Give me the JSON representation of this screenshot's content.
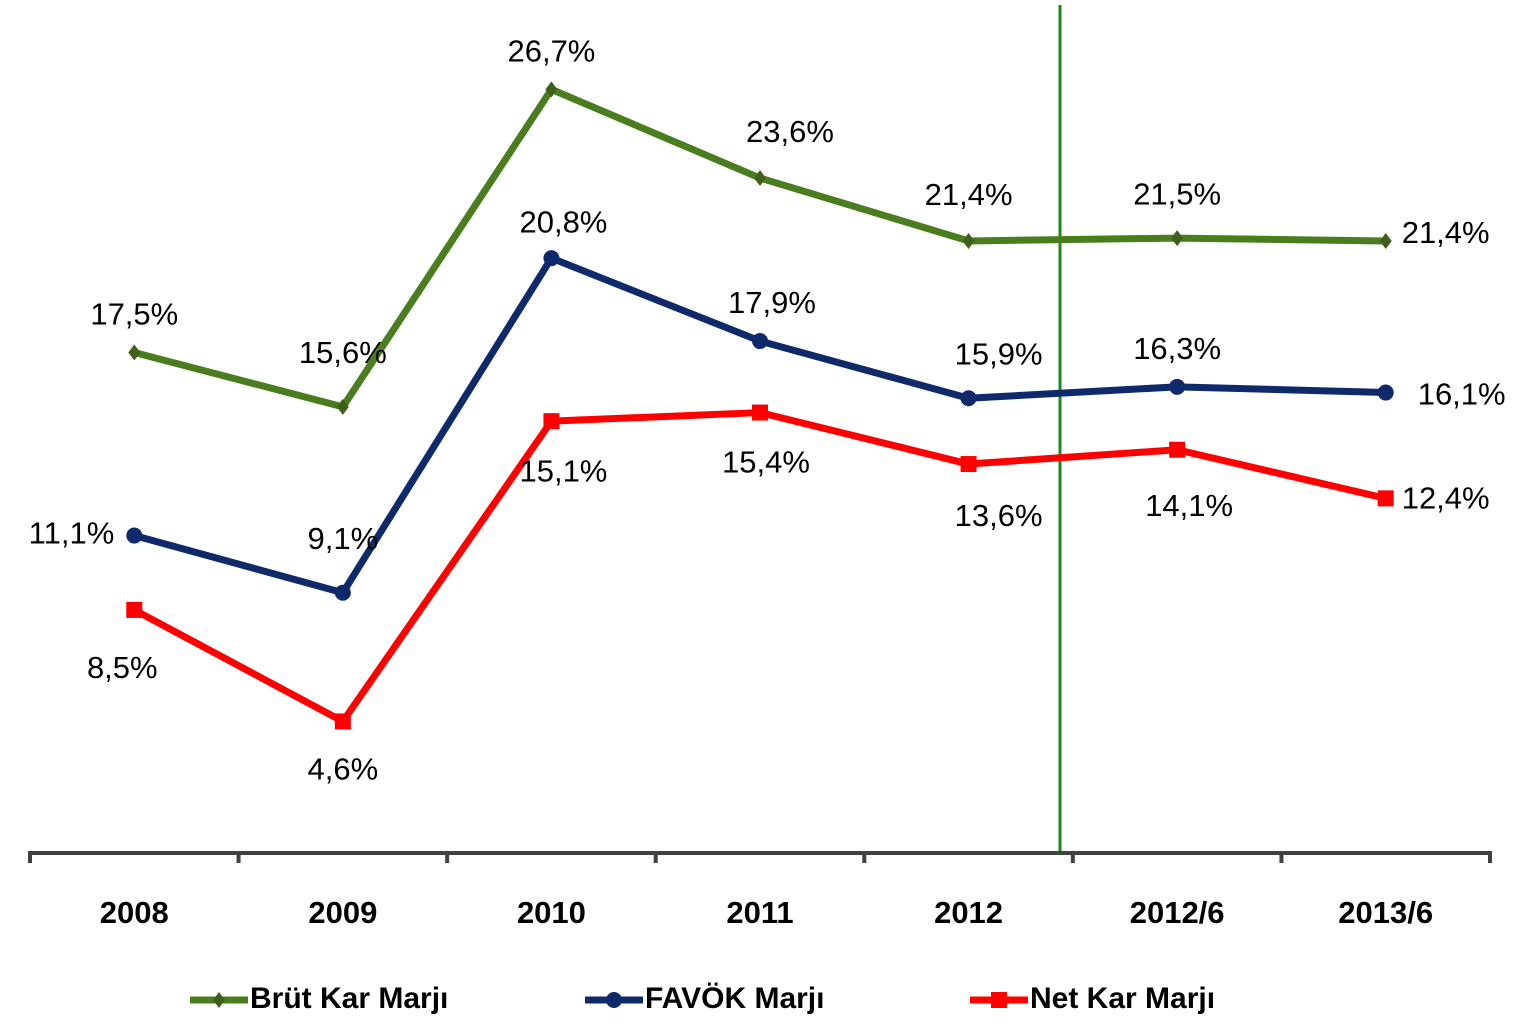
{
  "chart_data": {
    "type": "line",
    "categories": [
      "2008",
      "2009",
      "2010",
      "2011",
      "2012",
      "2012/6",
      "2013/6"
    ],
    "series": [
      {
        "name": "Brüt Kar Marjı",
        "color": "#4a7d1e",
        "marker": "diamond",
        "values": [
          17.5,
          15.6,
          26.7,
          23.6,
          21.4,
          21.5,
          21.4
        ],
        "value_labels": [
          "17,5%",
          "15,6%",
          "26,7%",
          "23,6%",
          "21,4%",
          "21,5%",
          "21,4%"
        ]
      },
      {
        "name": "FAVÖK Marjı",
        "color": "#0f2a6b",
        "marker": "circle",
        "values": [
          11.1,
          9.1,
          20.8,
          17.9,
          15.9,
          16.3,
          16.1
        ],
        "value_labels": [
          "11,1%",
          "9,1%",
          "20,8%",
          "17,9%",
          "15,9%",
          "16,3%",
          "16,1%"
        ]
      },
      {
        "name": "Net Kar Marjı",
        "color": "#ff0000",
        "marker": "square",
        "values": [
          8.5,
          4.6,
          15.1,
          15.4,
          13.6,
          14.1,
          12.4
        ],
        "value_labels": [
          "8,5%",
          "4,6%",
          "15,1%",
          "15,4%",
          "13,6%",
          "14,1%",
          "12,4%"
        ]
      }
    ],
    "ylim": [
      0,
      30
    ],
    "grid": false,
    "legend": "bottom"
  }
}
